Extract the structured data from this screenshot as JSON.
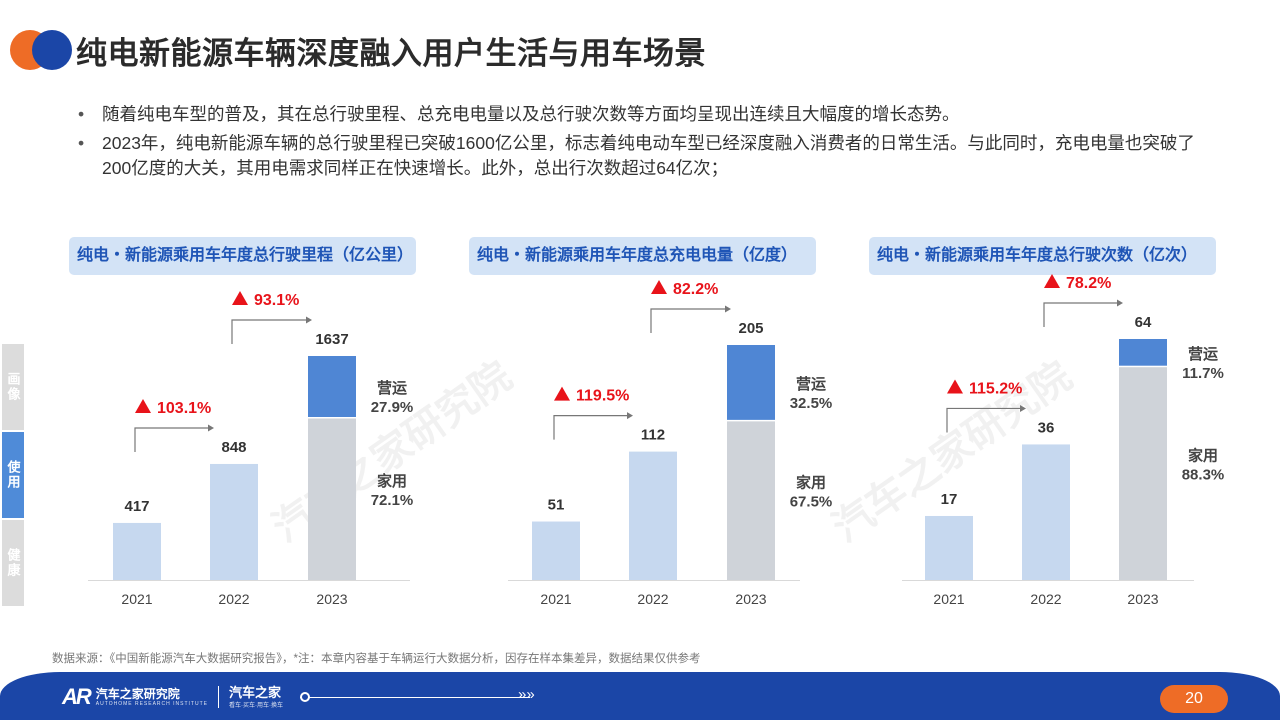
{
  "page_title": "纯电新能源车辆深度融入用户生活与用车场景",
  "bullets": [
    "随着纯电车型的普及，其在总行驶里程、总充电电量以及总行驶次数等方面均呈现出连续且大幅度的增长态势。",
    "2023年，纯电新能源车辆的总行驶里程已突破1600亿公里，标志着纯电动车型已经深度融入消费者的日常生活。与此同时，充电电量也突破了200亿度的大关，其用电需求同样正在快速增长。此外，总出行次数超过64亿次；"
  ],
  "side_tabs": [
    {
      "label": "画像",
      "active": false
    },
    {
      "label": "使用",
      "active": true
    },
    {
      "label": "健康",
      "active": false
    }
  ],
  "watermark": "汽车之家研究院",
  "chart_data": [
    {
      "type": "bar",
      "title": "纯电・新能源乘用车年度总行驶里程（亿公里）",
      "categories": [
        "2021",
        "2022",
        "2023"
      ],
      "values": [
        417,
        848,
        1637
      ],
      "growth": [
        {
          "from": "2021",
          "to": "2022",
          "label": "103.1%"
        },
        {
          "from": "2022",
          "to": "2023",
          "label": "93.1%"
        }
      ],
      "split_2023": [
        {
          "name": "家用",
          "share": 72.1
        },
        {
          "name": "营运",
          "share": 27.9
        }
      ]
    },
    {
      "type": "bar",
      "title": "纯电・新能源乘用车年度总充电电量（亿度）",
      "categories": [
        "2021",
        "2022",
        "2023"
      ],
      "values": [
        51,
        112,
        205
      ],
      "growth": [
        {
          "from": "2021",
          "to": "2022",
          "label": "119.5%"
        },
        {
          "from": "2022",
          "to": "2023",
          "label": "82.2%"
        }
      ],
      "split_2023": [
        {
          "name": "家用",
          "share": 67.5
        },
        {
          "name": "营运",
          "share": 32.5
        }
      ]
    },
    {
      "type": "bar",
      "title": "纯电・新能源乘用车年度总行驶次数（亿次）",
      "categories": [
        "2021",
        "2022",
        "2023"
      ],
      "values": [
        17,
        36,
        64
      ],
      "growth": [
        {
          "from": "2021",
          "to": "2022",
          "label": "115.2%"
        },
        {
          "from": "2022",
          "to": "2023",
          "label": "78.2%"
        }
      ],
      "split_2023": [
        {
          "name": "家用",
          "share": 88.3
        },
        {
          "name": "营运",
          "share": 11.7
        }
      ]
    }
  ],
  "colors": {
    "bar_light": "#c6d8ef",
    "bar_family": "#cfd3d9",
    "bar_commercial": "#4f86d4",
    "growth_red": "#e8131a",
    "title_blue": "#1f55b6",
    "accent_orange": "#ee6c26",
    "brand_blue": "#1b46a7"
  },
  "source_note": "数据来源：《中国新能源汽车大数据研究报告》，*注：本章内容基于车辆运行大数据分析，因存在样本集差异，数据结果仅供参考",
  "footer": {
    "logo_mark": "AR",
    "logo_name": "汽车之家研究院",
    "logo_sub": "AUTOHOME RESEARCH INSTITUTE",
    "brand_name": "汽车之家",
    "brand_sub": "看车·买车·用车·换车",
    "arrows": "»»",
    "page_number": "20"
  }
}
